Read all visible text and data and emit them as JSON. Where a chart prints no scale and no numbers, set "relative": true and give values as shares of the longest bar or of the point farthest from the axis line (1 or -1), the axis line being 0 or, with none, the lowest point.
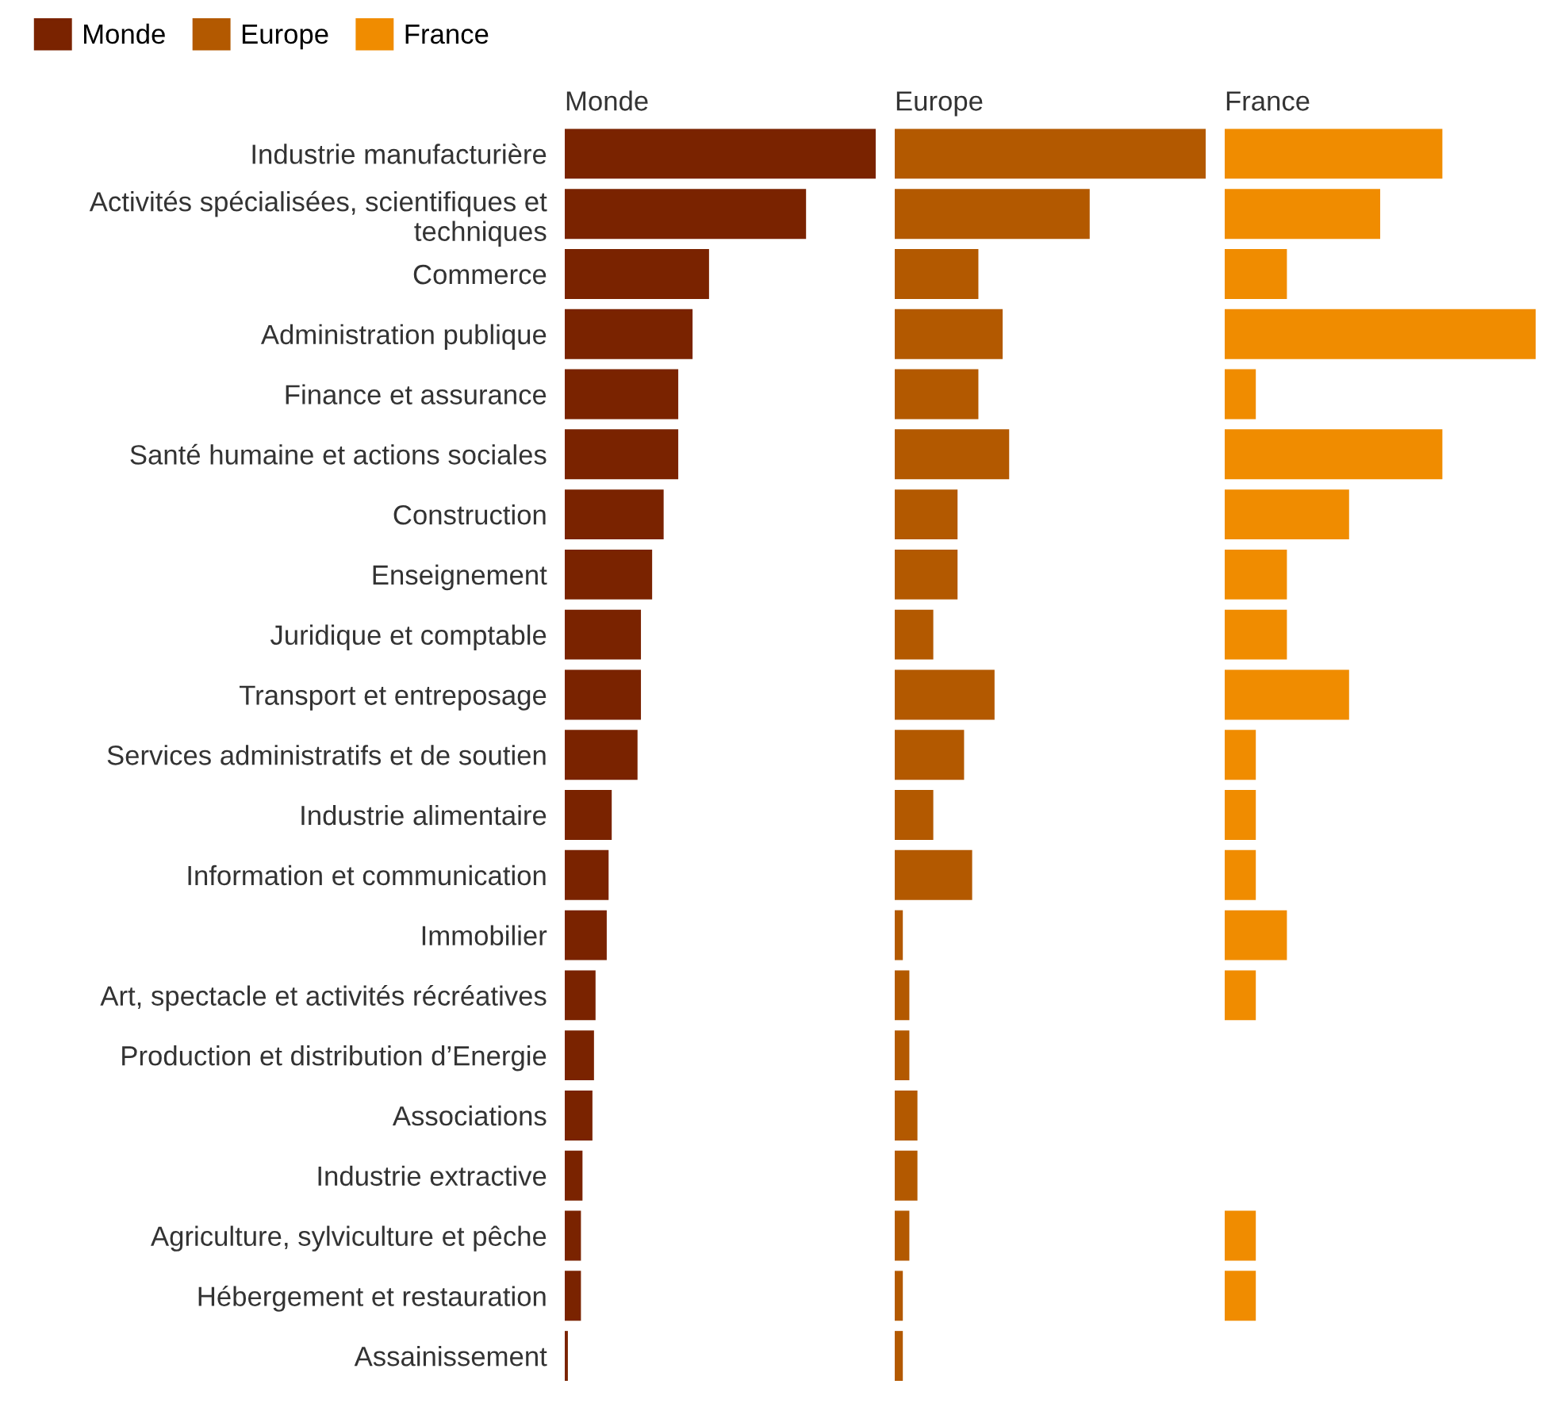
{
  "chart_data": [
    {
      "type": "bar",
      "orientation": "horizontal",
      "relative": true,
      "title": "Monde",
      "legend": "top left",
      "tick_labels": "y",
      "categories": [
        "Industrie manufacturière",
        "Activités spécialisées, scientifiques et\ntechniques",
        "Commerce",
        "Administration publique",
        "Finance et assurance",
        "Santé humaine et actions sociales",
        "Construction",
        "Enseignement",
        "Juridique et comptable",
        "Transport et entreposage",
        "Services administratifs et de soutien",
        "Industrie alimentaire",
        "Information et communication",
        "Immobilier",
        "Art, spectacle et activités récréatives",
        "Production et distribution d’Energie",
        "Associations",
        "Industrie extractive",
        "Agriculture, sylviculture et pêche",
        "Hébergement et restauration",
        "Assainissement"
      ],
      "series": [
        {
          "name": "Monde",
          "color": "#7a2300",
          "values": [
            1.0,
            0.776,
            0.464,
            0.411,
            0.365,
            0.365,
            0.318,
            0.281,
            0.245,
            0.245,
            0.234,
            0.151,
            0.141,
            0.135,
            0.099,
            0.094,
            0.089,
            0.057,
            0.052,
            0.052,
            0.01
          ]
        }
      ]
    },
    {
      "type": "bar",
      "orientation": "horizontal",
      "relative": true,
      "title": "Europe",
      "legend": "top left",
      "tick_labels": false,
      "categories": [
        null,
        null,
        null,
        null,
        null,
        null,
        null,
        null,
        null,
        null,
        null,
        null,
        null,
        null,
        null,
        null,
        null,
        null,
        null,
        null,
        null
      ],
      "series": [
        {
          "name": "Europe",
          "color": "#b35900",
          "values": [
            1.0,
            0.627,
            0.269,
            0.347,
            0.269,
            0.368,
            0.202,
            0.202,
            0.124,
            0.321,
            0.223,
            0.124,
            0.249,
            0.026,
            0.047,
            0.047,
            0.073,
            0.073,
            0.047,
            0.026,
            0.026
          ]
        }
      ]
    },
    {
      "type": "bar",
      "orientation": "horizontal",
      "relative": true,
      "title": "France",
      "legend": "top left",
      "tick_labels": false,
      "categories": [
        null,
        null,
        null,
        null,
        null,
        null,
        null,
        null,
        null,
        null,
        null,
        null,
        null,
        null,
        null,
        null,
        null,
        null,
        null,
        null,
        null
      ],
      "series": [
        {
          "name": "France",
          "color": "#f08c00",
          "values": [
            0.7,
            0.5,
            0.2,
            1.0,
            0.1,
            0.7,
            0.4,
            0.2,
            0.2,
            0.4,
            0.1,
            0.1,
            0.1,
            0.2,
            0.1,
            0,
            0,
            0,
            0.1,
            0.1,
            0
          ]
        }
      ]
    }
  ]
}
